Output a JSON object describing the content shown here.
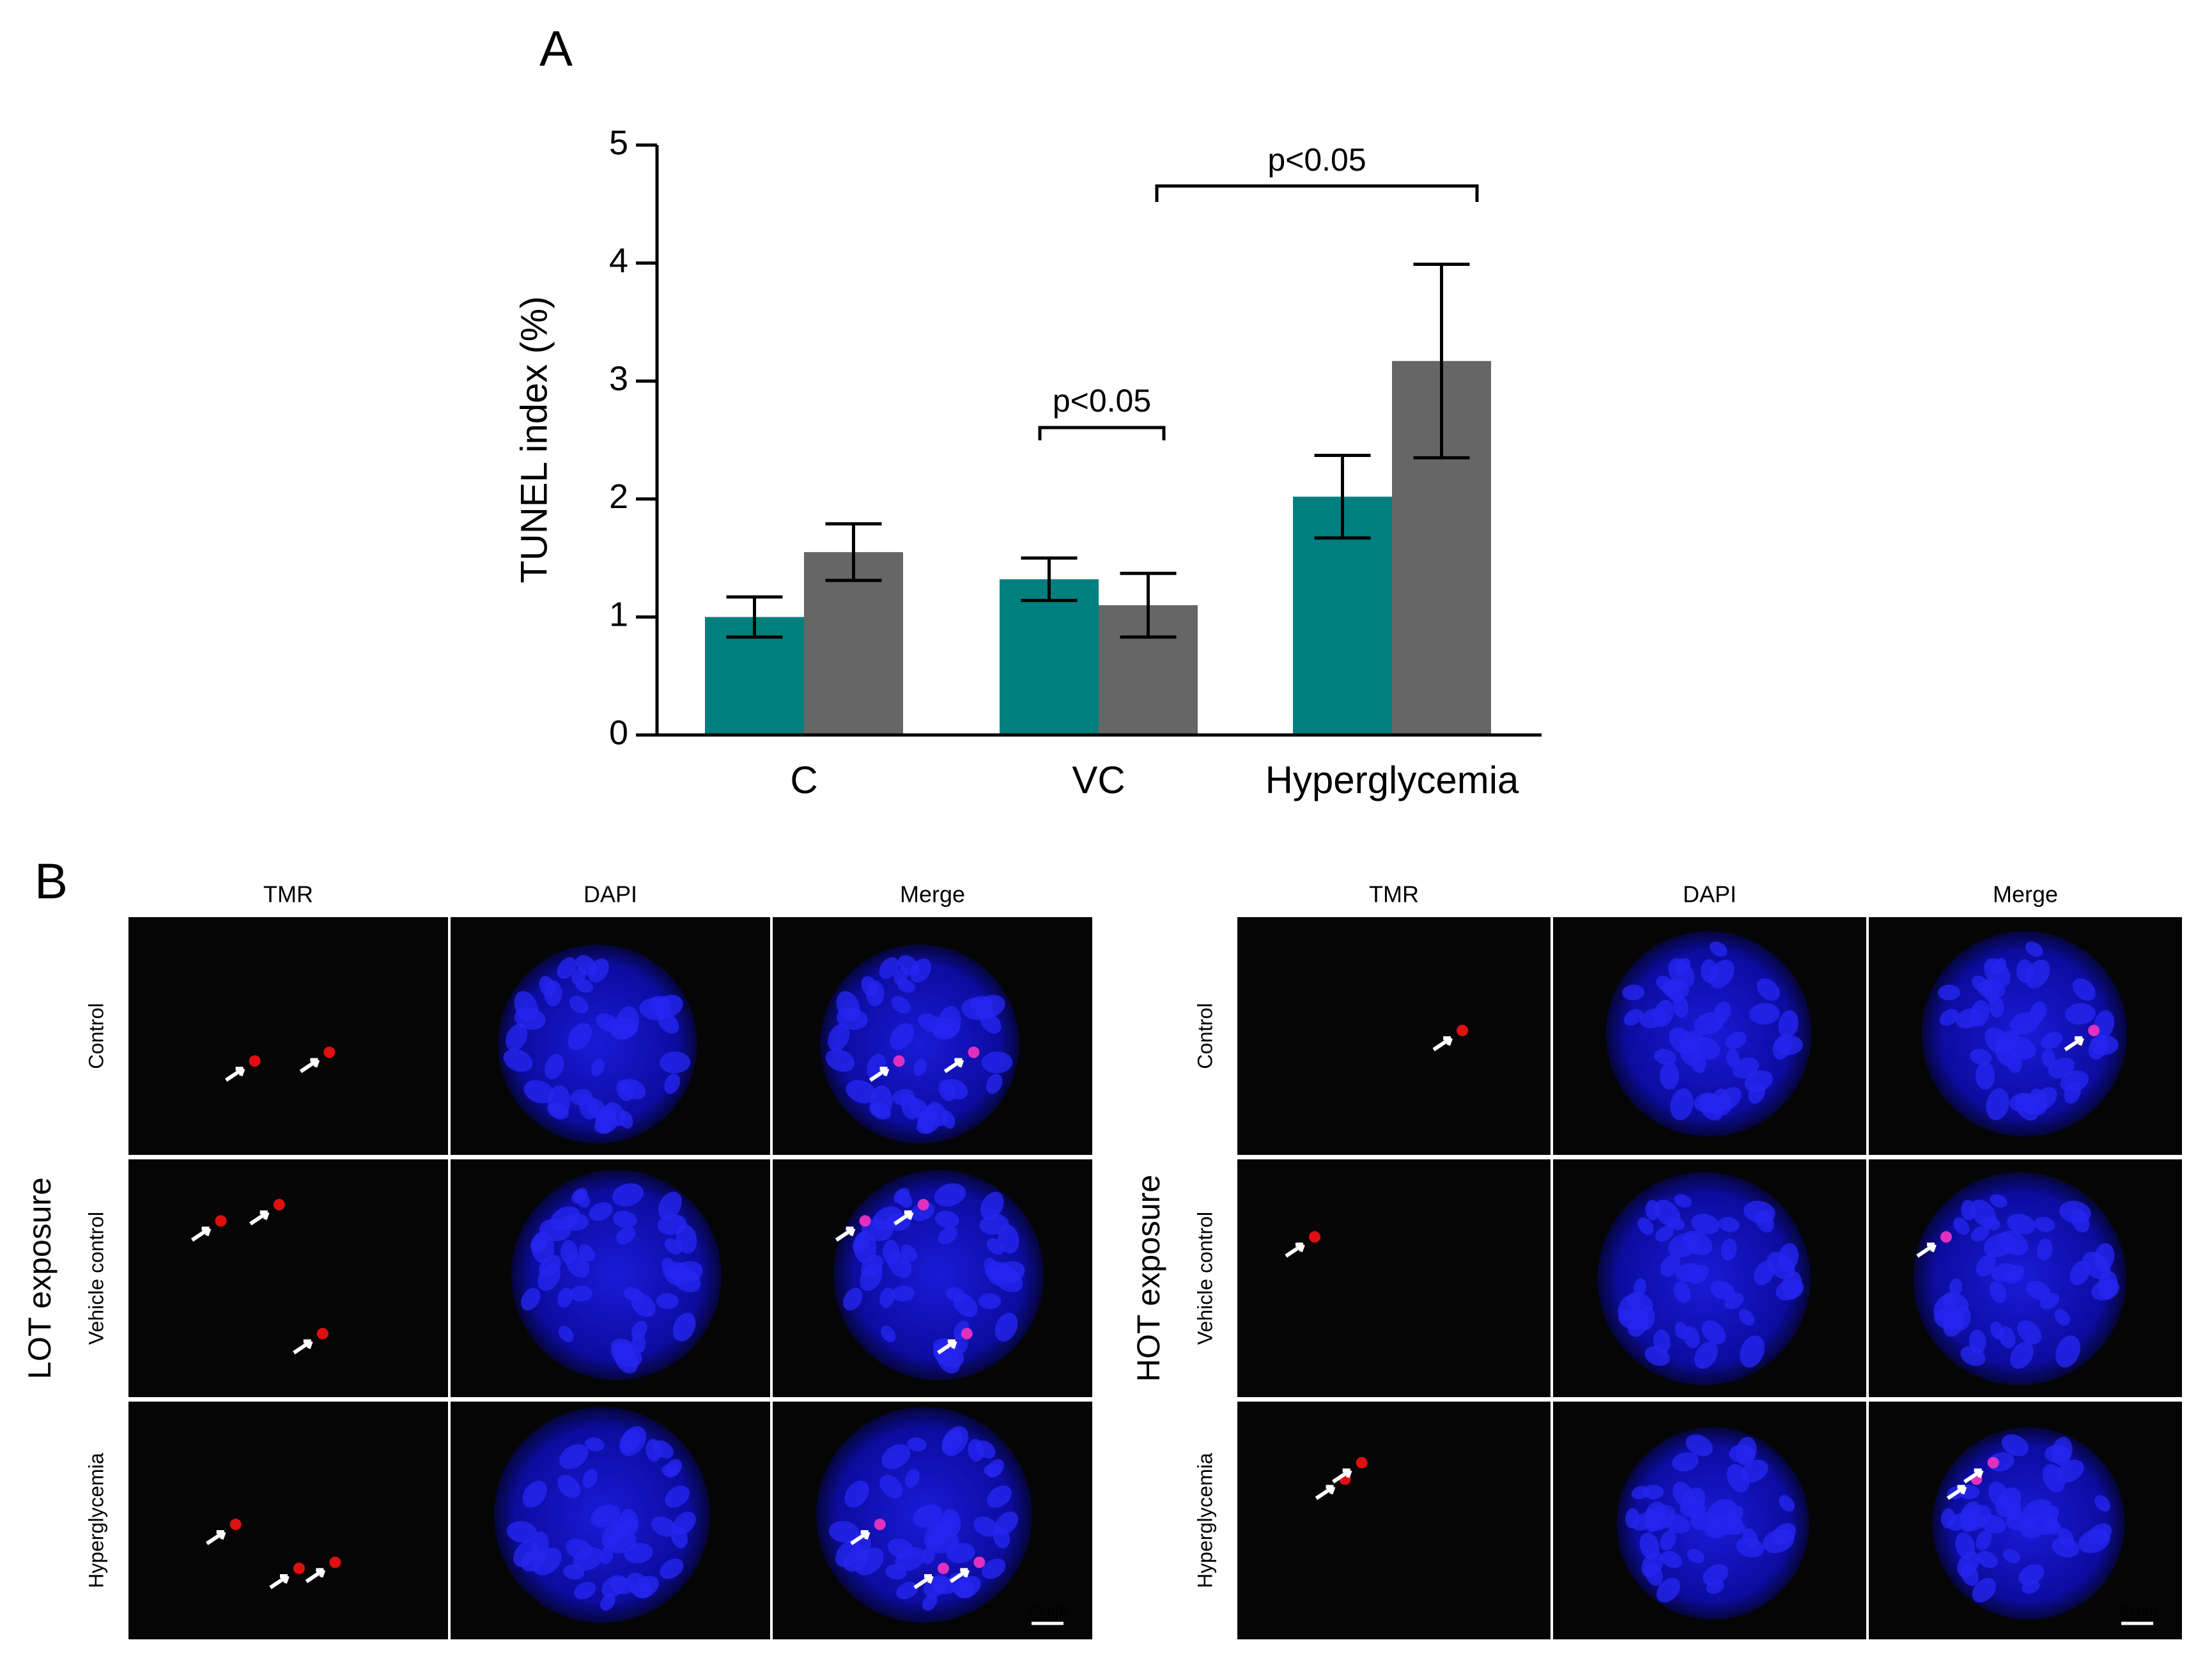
{
  "chart_data": {
    "type": "bar",
    "panel_label": "A",
    "categories": [
      "C",
      "VC",
      "Hyperglycemia"
    ],
    "series": [
      {
        "color": "#007f7f",
        "values": [
          1.0,
          1.32,
          2.02
        ],
        "errors": [
          0.17,
          0.18,
          0.35
        ]
      },
      {
        "color": "#666666",
        "values": [
          1.55,
          1.1,
          3.17
        ],
        "errors": [
          0.24,
          0.27,
          0.82
        ]
      }
    ],
    "ylabel": "TUNEL index (%)",
    "ylim": [
      0,
      5
    ],
    "yticks": [
      0,
      1,
      2,
      3,
      4,
      5
    ],
    "grid": false,
    "annotations": [
      "p<0.05",
      "p<0.05"
    ]
  },
  "panel_b": {
    "label": "B",
    "groups": [
      {
        "title": "LOT exposure",
        "columns": [
          "TMR",
          "DAPI",
          "Merge"
        ],
        "rows": [
          "Control",
          "Vehicle control",
          "Hyperglycemia"
        ],
        "scale_bar": "20 μm"
      },
      {
        "title": "HOT exposure",
        "columns": [
          "TMR",
          "DAPI",
          "Merge"
        ],
        "rows": [
          "Control",
          "Vehicle control",
          "Hyperglycemia"
        ],
        "scale_bar": "20 μm"
      }
    ]
  }
}
